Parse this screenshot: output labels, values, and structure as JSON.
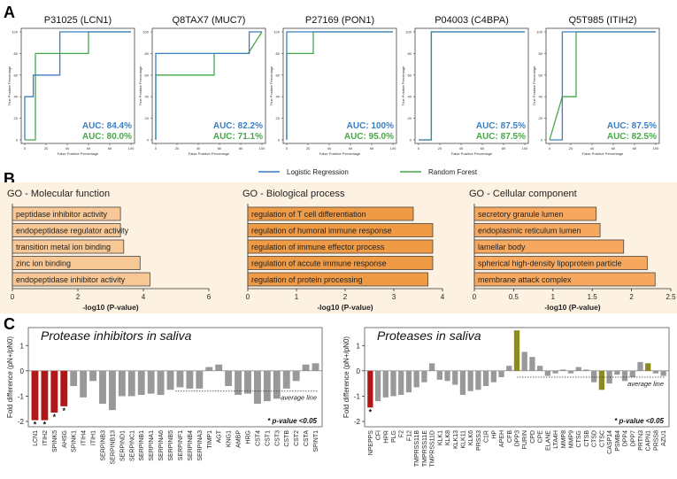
{
  "panel_labels": {
    "a": "A",
    "b": "B",
    "c": "C"
  },
  "roc_legend": {
    "lr": "Logistic Regression",
    "rf": "Random Forest"
  },
  "colors": {
    "lr": "#3a7fc1",
    "rf": "#45a845",
    "bar_mf": "#f7c896",
    "bar_bp": "#ef9a45",
    "bar_cc": "#f7a85f",
    "sig_red": "#b01818",
    "olive": "#8b8b1e",
    "grey": "#999999",
    "go_bg": "#fdf1e2"
  },
  "chart_data": [
    {
      "type": "line",
      "id": "roc-lcn1",
      "title": "P31025 (LCN1)",
      "xlabel": "False Positive Percentage",
      "ylabel": "True Positive Percentage",
      "ticks": [
        "0",
        "20",
        "40",
        "60",
        "80",
        "100"
      ],
      "auc_lr": "AUC: 84.4%",
      "auc_rf": "AUC: 80.0%",
      "lr": [
        [
          0,
          0
        ],
        [
          0,
          40
        ],
        [
          8,
          40
        ],
        [
          8,
          60
        ],
        [
          33,
          60
        ],
        [
          33,
          100
        ],
        [
          100,
          100
        ]
      ],
      "rf": [
        [
          0,
          0
        ],
        [
          0,
          0
        ],
        [
          10,
          0
        ],
        [
          10,
          80
        ],
        [
          60,
          80
        ],
        [
          60,
          100
        ],
        [
          100,
          100
        ]
      ]
    },
    {
      "type": "line",
      "id": "roc-muc7",
      "title": "Q8TAX7 (MUC7)",
      "xlabel": "False Positive Percentage",
      "ylabel": "True Positive Percentage",
      "ticks": [
        "0",
        "20",
        "40",
        "60",
        "80",
        "100"
      ],
      "auc_lr": "AUC: 82.2%",
      "auc_rf": "AUC: 71.1%",
      "lr": [
        [
          0,
          0
        ],
        [
          0,
          80
        ],
        [
          88,
          80
        ],
        [
          88,
          100
        ],
        [
          100,
          100
        ]
      ],
      "rf": [
        [
          0,
          0
        ],
        [
          0,
          60
        ],
        [
          55,
          60
        ],
        [
          55,
          80
        ],
        [
          87,
          80
        ],
        [
          100,
          100
        ]
      ]
    },
    {
      "type": "line",
      "id": "roc-pon1",
      "title": "P27169 (PON1)",
      "xlabel": "False Positive Percentage",
      "ylabel": "True Positive Percentage",
      "ticks": [
        "0",
        "20",
        "40",
        "60",
        "80",
        "100"
      ],
      "auc_lr": "AUC: 100%",
      "auc_rf": "AUC: 95.0%",
      "lr": [
        [
          0,
          0
        ],
        [
          0,
          100
        ],
        [
          100,
          100
        ]
      ],
      "rf": [
        [
          0,
          0
        ],
        [
          0,
          80
        ],
        [
          25,
          80
        ],
        [
          25,
          100
        ],
        [
          100,
          100
        ]
      ]
    },
    {
      "type": "line",
      "id": "roc-c4bpa",
      "title": "P04003 (C4BPA)",
      "xlabel": "False Positive Percentage",
      "ylabel": "True Positive Percentage",
      "ticks": [
        "0",
        "20",
        "40",
        "60",
        "80",
        "100"
      ],
      "auc_lr": "AUC: 87.5%",
      "auc_rf": "AUC: 87.5%",
      "lr": [
        [
          0,
          0
        ],
        [
          12,
          0
        ],
        [
          12,
          100
        ],
        [
          100,
          100
        ]
      ],
      "rf": [
        [
          0,
          0
        ],
        [
          12,
          0
        ],
        [
          12,
          100
        ],
        [
          100,
          100
        ]
      ]
    },
    {
      "type": "line",
      "id": "roc-itih2",
      "title": "Q5T985 (ITIH2)",
      "xlabel": "False Positive Percentage",
      "ylabel": "True Positive Percentage",
      "ticks": [
        "0",
        "20",
        "40",
        "60",
        "80",
        "100"
      ],
      "auc_lr": "AUC: 87.5%",
      "auc_rf": "AUC: 82.5%",
      "lr": [
        [
          0,
          0
        ],
        [
          12,
          0
        ],
        [
          12,
          100
        ],
        [
          100,
          100
        ]
      ],
      "rf": [
        [
          0,
          0
        ],
        [
          12,
          40
        ],
        [
          25,
          40
        ],
        [
          25,
          100
        ],
        [
          100,
          100
        ]
      ]
    },
    {
      "type": "bar",
      "id": "go-mf",
      "title": "GO - Molecular function",
      "xlabel": "-log10 (P-value)",
      "xlim": [
        0,
        6
      ],
      "ticks": [
        "0",
        "2",
        "4",
        "6"
      ],
      "categories": [
        "peptidase inhibitor activity",
        "endopeptidase regulator activity",
        "transition metal ion binding",
        "zinc ion binding",
        "endopeptidase inhibitor activity"
      ],
      "values": [
        3.3,
        3.3,
        3.4,
        3.9,
        4.2
      ]
    },
    {
      "type": "bar",
      "id": "go-bp",
      "title": "GO - Biological process",
      "xlabel": "-log10 (P-value)",
      "xlim": [
        0,
        4
      ],
      "ticks": [
        "0",
        "1",
        "2",
        "3",
        "4"
      ],
      "categories": [
        "regulation of T cell differentiation",
        "regulation of humoral immune response",
        "regulation of immune effector process",
        "regulation of accute immune response",
        "regulation of protein processing"
      ],
      "values": [
        3.4,
        3.8,
        3.8,
        3.8,
        3.7
      ]
    },
    {
      "type": "bar",
      "id": "go-cc",
      "title": "GO - Cellular component",
      "xlabel": "-log10 (P-value)",
      "xlim": [
        0,
        2.5
      ],
      "ticks": [
        "0",
        "0.5",
        "1",
        "1.5",
        "2",
        "2.5"
      ],
      "categories": [
        "secretory granule lumen",
        "endoplasmic reticulum lumen",
        "lamellar body",
        "spherical high-density lipoprotein particle",
        "membrane attack complex"
      ],
      "values": [
        1.55,
        1.6,
        1.9,
        2.2,
        2.3
      ]
    },
    {
      "type": "bar",
      "id": "fold-inhibitors",
      "title": "Protease inhibitors in saliva",
      "ylabel": "Fold difference (pN+/pN0)",
      "ylim": [
        -2,
        1.5
      ],
      "ticks": [
        "1",
        "0",
        "-1",
        "-2"
      ],
      "avg_label": "average line",
      "avg": -0.8,
      "pvalue_note": "* p-value <0.05",
      "categories": [
        "LCN1",
        "ITIH2",
        "SPINK5",
        "AHSG",
        "SPINK1",
        "ITIH4",
        "ITIH1",
        "SERPINB3",
        "SERPINB13",
        "SERPIND1",
        "SERPINC1",
        "SERPINB1",
        "SERPINA1",
        "SERPINA6",
        "SERPINB5",
        "SERPINF1",
        "SERPINB4",
        "SERPINA3",
        "TIMP1",
        "AGT",
        "KNG1",
        "AMBP",
        "HRG",
        "CST4",
        "CST1",
        "CST3",
        "CSTB",
        "CST2",
        "CSTA",
        "SPINT1"
      ],
      "values": [
        -1.95,
        -1.95,
        -1.65,
        -1.4,
        -0.6,
        -1.05,
        -0.4,
        -1.3,
        -1.55,
        -1.0,
        -1.0,
        -0.95,
        -0.9,
        -0.95,
        -0.75,
        -0.65,
        -0.7,
        -0.7,
        0.15,
        0.25,
        -0.6,
        -0.95,
        -0.9,
        -1.3,
        -1.2,
        -1.1,
        -0.7,
        -0.4,
        0.25,
        0.3
      ],
      "colors": [
        "red",
        "red",
        "red",
        "red",
        "grey",
        "grey",
        "grey",
        "grey",
        "grey",
        "grey",
        "grey",
        "grey",
        "grey",
        "grey",
        "grey",
        "grey",
        "grey",
        "grey",
        "grey",
        "grey",
        "grey",
        "grey",
        "grey",
        "grey",
        "grey",
        "grey",
        "grey",
        "grey",
        "grey",
        "grey"
      ],
      "sig": [
        true,
        true,
        true,
        true,
        false,
        false,
        false,
        false,
        false,
        false,
        false,
        false,
        false,
        false,
        false,
        false,
        false,
        false,
        false,
        false,
        false,
        false,
        false,
        false,
        false,
        false,
        false,
        false,
        false,
        false
      ]
    },
    {
      "type": "bar",
      "id": "fold-proteases",
      "title": "Proteases in saliva",
      "ylabel": "Fold difference (pN+/pN0)",
      "ylim": [
        -2,
        1.5
      ],
      "ticks": [
        "1",
        "0",
        "-1",
        "-2"
      ],
      "avg_label": "average line",
      "avg": -0.25,
      "pvalue_note": "* p-value <0.05",
      "categories": [
        "NPEPPS",
        "CFI",
        "HPR",
        "PLG",
        "F2",
        "F12",
        "TMPRSS11B",
        "TMPRSS11E",
        "TMPRSS11D",
        "KLK1",
        "KLK8",
        "KLK13",
        "KLK11",
        "KLK6",
        "PRSS3",
        "C1R",
        "HP",
        "APEH",
        "CFB",
        "DPP3",
        "FURIN",
        "CPD",
        "CPE",
        "ELANE",
        "LTA4H",
        "MMP8",
        "MMP9",
        "CTSG",
        "CTSB",
        "CTSD",
        "CTSC",
        "CASP14",
        "PSMB4",
        "DPP4",
        "DPP7",
        "PRTN3",
        "CAPN1",
        "PRSS8",
        "AZU1"
      ],
      "values": [
        -1.45,
        -1.2,
        -1.05,
        -1.0,
        -0.95,
        -0.85,
        -0.65,
        -0.45,
        0.3,
        -0.35,
        -0.4,
        -0.55,
        -0.95,
        -0.8,
        -0.75,
        -0.6,
        -0.45,
        -0.25,
        0.2,
        1.6,
        0.75,
        0.55,
        0.2,
        -0.2,
        -0.1,
        0.05,
        -0.1,
        0.15,
        0.05,
        -0.45,
        -0.75,
        -0.5,
        -0.15,
        -0.4,
        -0.25,
        0.35,
        0.3,
        -0.1,
        -0.2
      ],
      "colors": [
        "red",
        "grey",
        "grey",
        "grey",
        "grey",
        "grey",
        "grey",
        "grey",
        "grey",
        "grey",
        "grey",
        "grey",
        "grey",
        "grey",
        "grey",
        "grey",
        "grey",
        "grey",
        "grey",
        "olive",
        "grey",
        "grey",
        "grey",
        "grey",
        "grey",
        "grey",
        "grey",
        "grey",
        "grey",
        "grey",
        "olive",
        "grey",
        "grey",
        "grey",
        "grey",
        "grey",
        "olive",
        "grey",
        "grey"
      ],
      "sig": [
        true,
        false,
        false,
        false,
        false,
        false,
        false,
        false,
        false,
        false,
        false,
        false,
        false,
        false,
        false,
        false,
        false,
        false,
        false,
        false,
        false,
        false,
        false,
        false,
        false,
        false,
        false,
        false,
        false,
        false,
        false,
        false,
        false,
        false,
        false,
        false,
        false,
        false,
        false
      ]
    }
  ]
}
